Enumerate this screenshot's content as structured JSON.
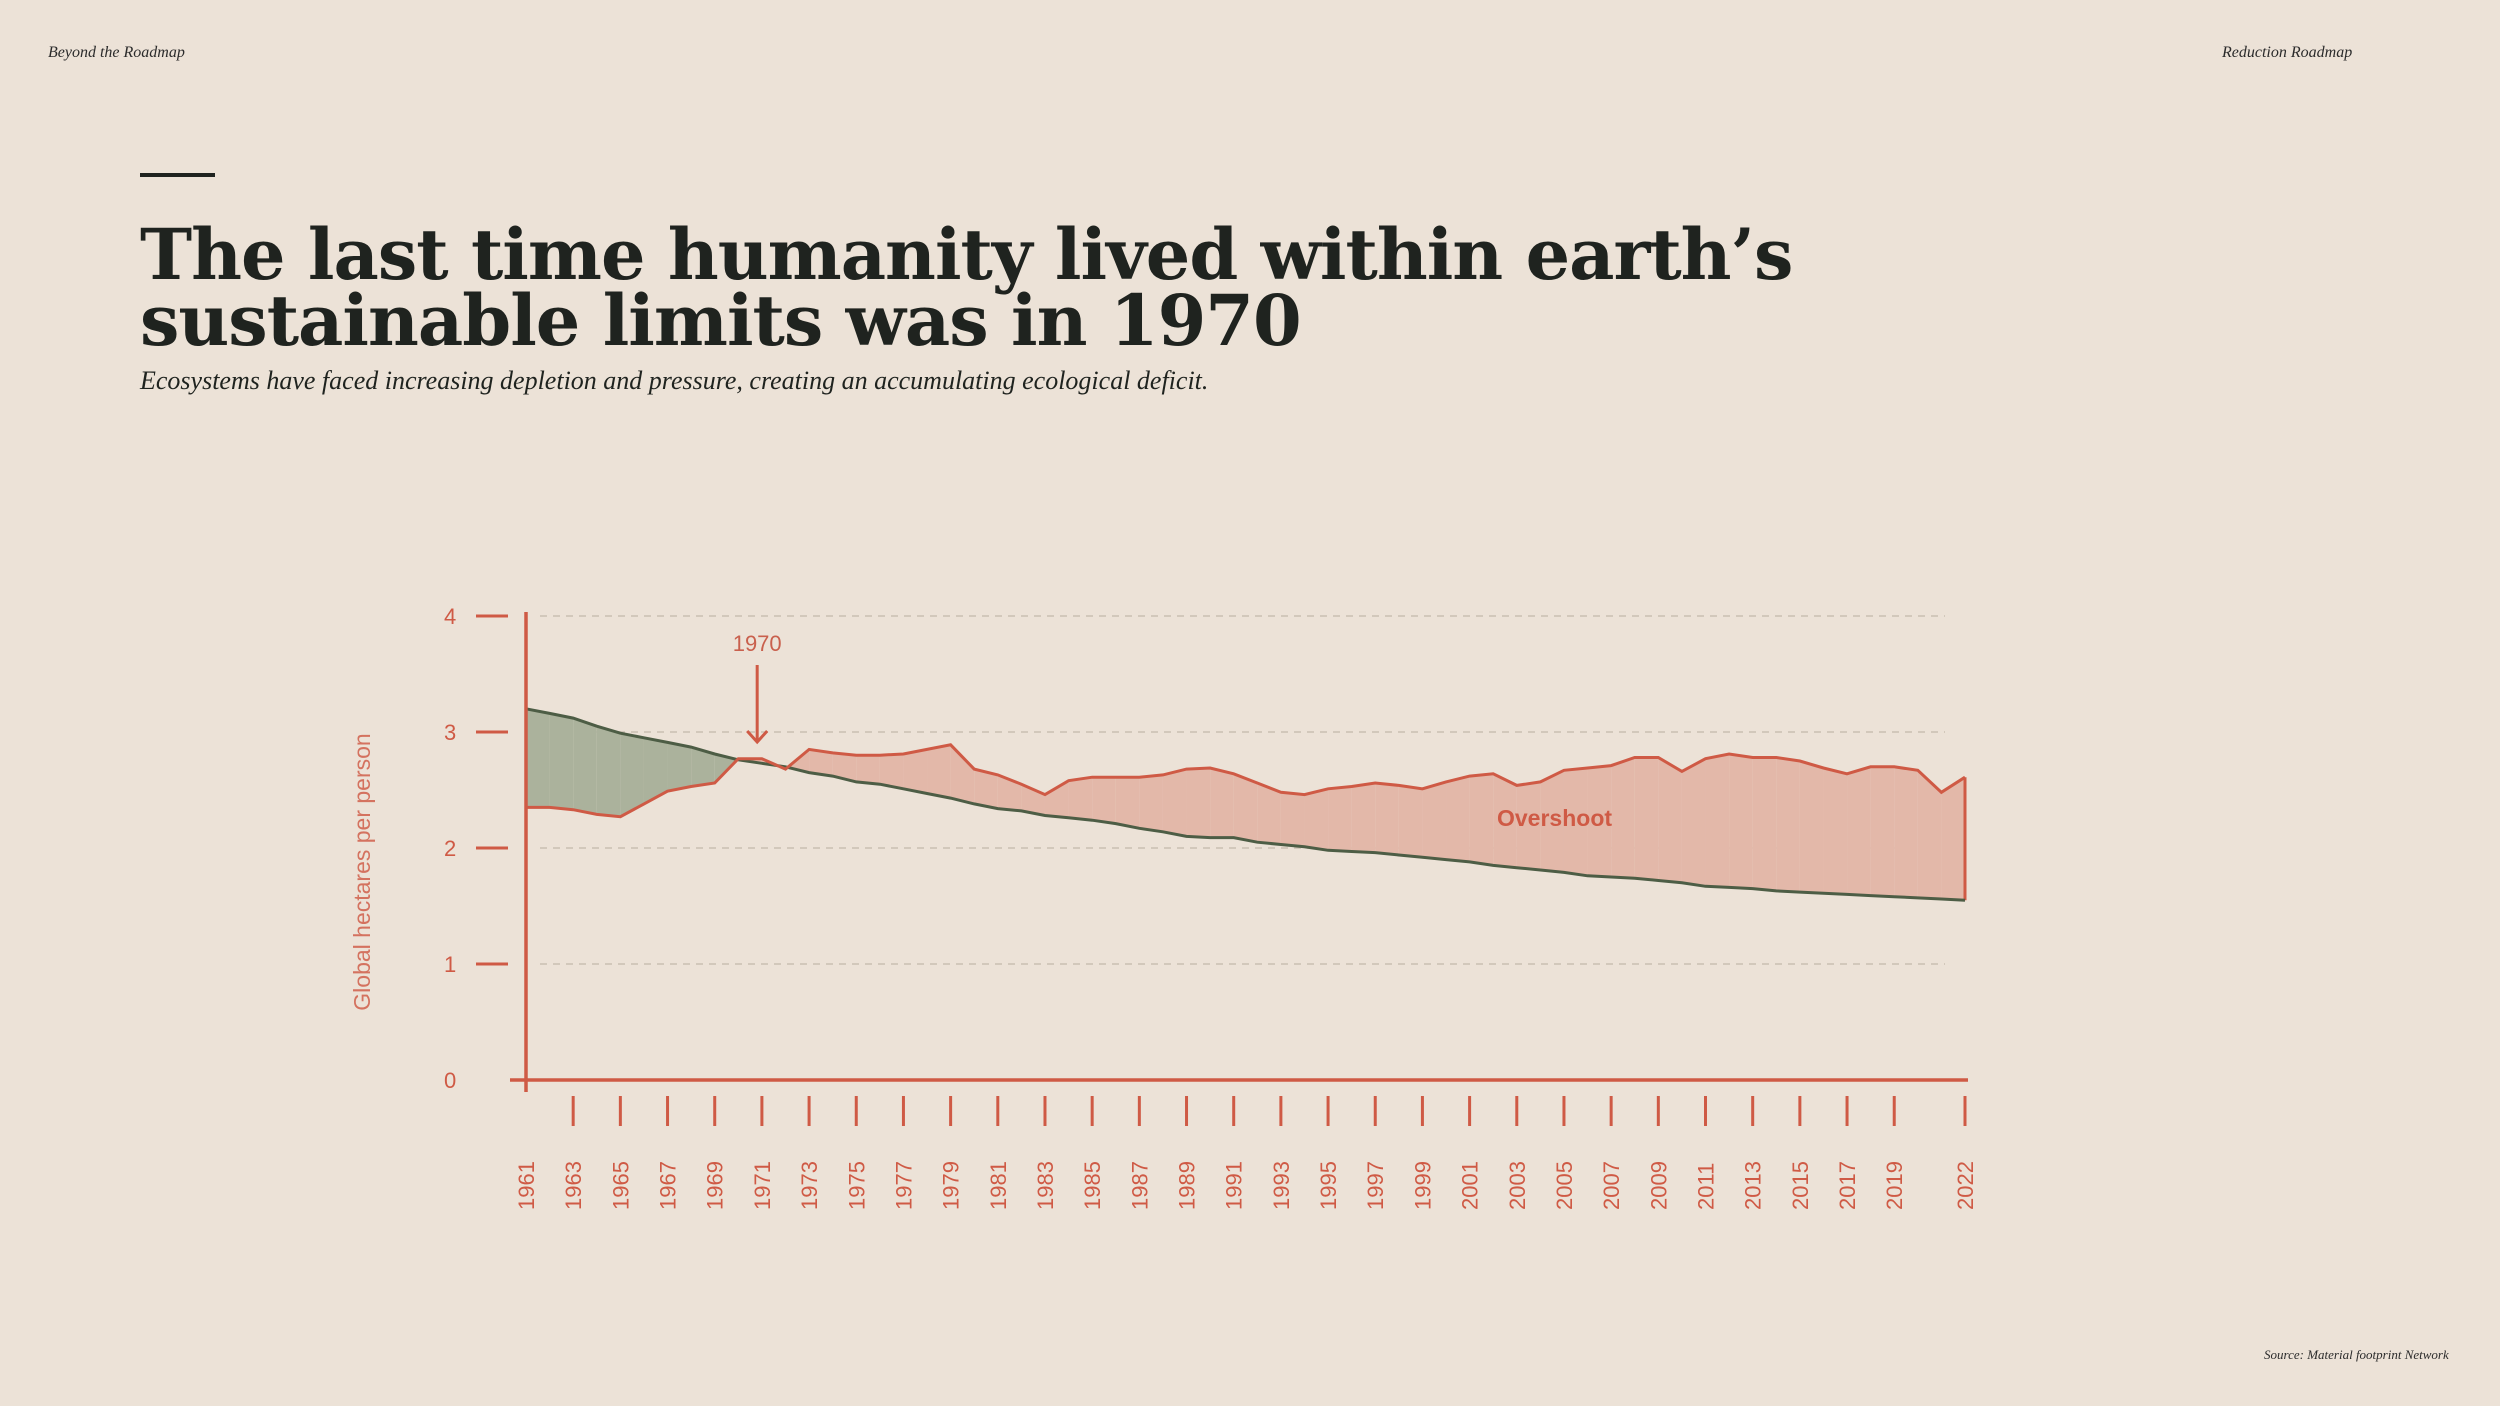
{
  "header": {
    "left": "Beyond the Roadmap",
    "right": "Reduction Roadmap"
  },
  "title": "The last time humanity lived within earth’s sustainable limits was in 1970",
  "subtitle": "Ecosystems have faced increasing depletion and pressure, creating an accumulating ecological deficit.",
  "source": "Source: Material footprint Network",
  "colors": {
    "footprint": "#cf5a45",
    "biocapacity": "#4d5d45",
    "overshoot_fill": "#e3b8a9",
    "reserve_fill": "#abb29c",
    "background": "#ece2d7"
  },
  "chart_data": {
    "type": "area",
    "ylabel": "Global hectares per person",
    "xlabel": "",
    "ylim": [
      0,
      4
    ],
    "yticks": [
      "0",
      "1",
      "2",
      "3",
      "4"
    ],
    "grid": true,
    "xtick_labels": [
      "1961",
      "1963",
      "1965",
      "1967",
      "1969",
      "1971",
      "1973",
      "1975",
      "1977",
      "1979",
      "1981",
      "1983",
      "1985",
      "1987",
      "1989",
      "1991",
      "1993",
      "1995",
      "1997",
      "1999",
      "2001",
      "2003",
      "2005",
      "2007",
      "2009",
      "2011",
      "2013",
      "2015",
      "2017",
      "2019",
      "2022"
    ],
    "x": [
      1961,
      1962,
      1963,
      1964,
      1965,
      1966,
      1967,
      1968,
      1969,
      1970,
      1971,
      1972,
      1973,
      1974,
      1975,
      1976,
      1977,
      1978,
      1979,
      1980,
      1981,
      1982,
      1983,
      1984,
      1985,
      1986,
      1987,
      1988,
      1989,
      1990,
      1991,
      1992,
      1993,
      1994,
      1995,
      1996,
      1997,
      1998,
      1999,
      2000,
      2001,
      2002,
      2003,
      2004,
      2005,
      2006,
      2007,
      2008,
      2009,
      2010,
      2011,
      2012,
      2013,
      2014,
      2015,
      2016,
      2017,
      2018,
      2019,
      2020,
      2021,
      2022
    ],
    "series": [
      {
        "name": "",
        "values": [
          2.35,
          2.35,
          2.33,
          2.29,
          2.27,
          2.38,
          2.49,
          2.53,
          2.56,
          2.77,
          2.77,
          2.68,
          2.85,
          2.82,
          2.8,
          2.8,
          2.81,
          2.85,
          2.89,
          2.68,
          2.63,
          2.55,
          2.46,
          2.58,
          2.61,
          2.61,
          2.61,
          2.63,
          2.68,
          2.69,
          2.64,
          2.56,
          2.48,
          2.46,
          2.51,
          2.53,
          2.56,
          2.54,
          2.51,
          2.57,
          2.62,
          2.64,
          2.54,
          2.57,
          2.67,
          2.69,
          2.71,
          2.78,
          2.78,
          2.66,
          2.77,
          2.81,
          2.78,
          2.78,
          2.75,
          2.69,
          2.64,
          2.7,
          2.7,
          2.67,
          2.48,
          2.61
        ]
      },
      {
        "name": "",
        "values": [
          3.2,
          3.16,
          3.12,
          3.05,
          2.99,
          2.95,
          2.91,
          2.87,
          2.81,
          2.76,
          2.73,
          2.7,
          2.65,
          2.62,
          2.57,
          2.55,
          2.51,
          2.47,
          2.43,
          2.38,
          2.34,
          2.32,
          2.28,
          2.26,
          2.24,
          2.21,
          2.17,
          2.14,
          2.1,
          2.09,
          2.09,
          2.05,
          2.03,
          2.01,
          1.98,
          1.97,
          1.96,
          1.94,
          1.92,
          1.9,
          1.88,
          1.85,
          1.83,
          1.81,
          1.79,
          1.76,
          1.75,
          1.74,
          1.72,
          1.7,
          1.67,
          1.66,
          1.65,
          1.63,
          1.62,
          1.61,
          1.6,
          1.59,
          1.58,
          1.57,
          1.56,
          1.55
        ]
      }
    ],
    "annotations": [
      {
        "text": "1970",
        "x": 1970.8,
        "y": 2.8
      },
      {
        "text": "Overshoot",
        "x": 2004.6,
        "y": 2.19
      }
    ]
  }
}
